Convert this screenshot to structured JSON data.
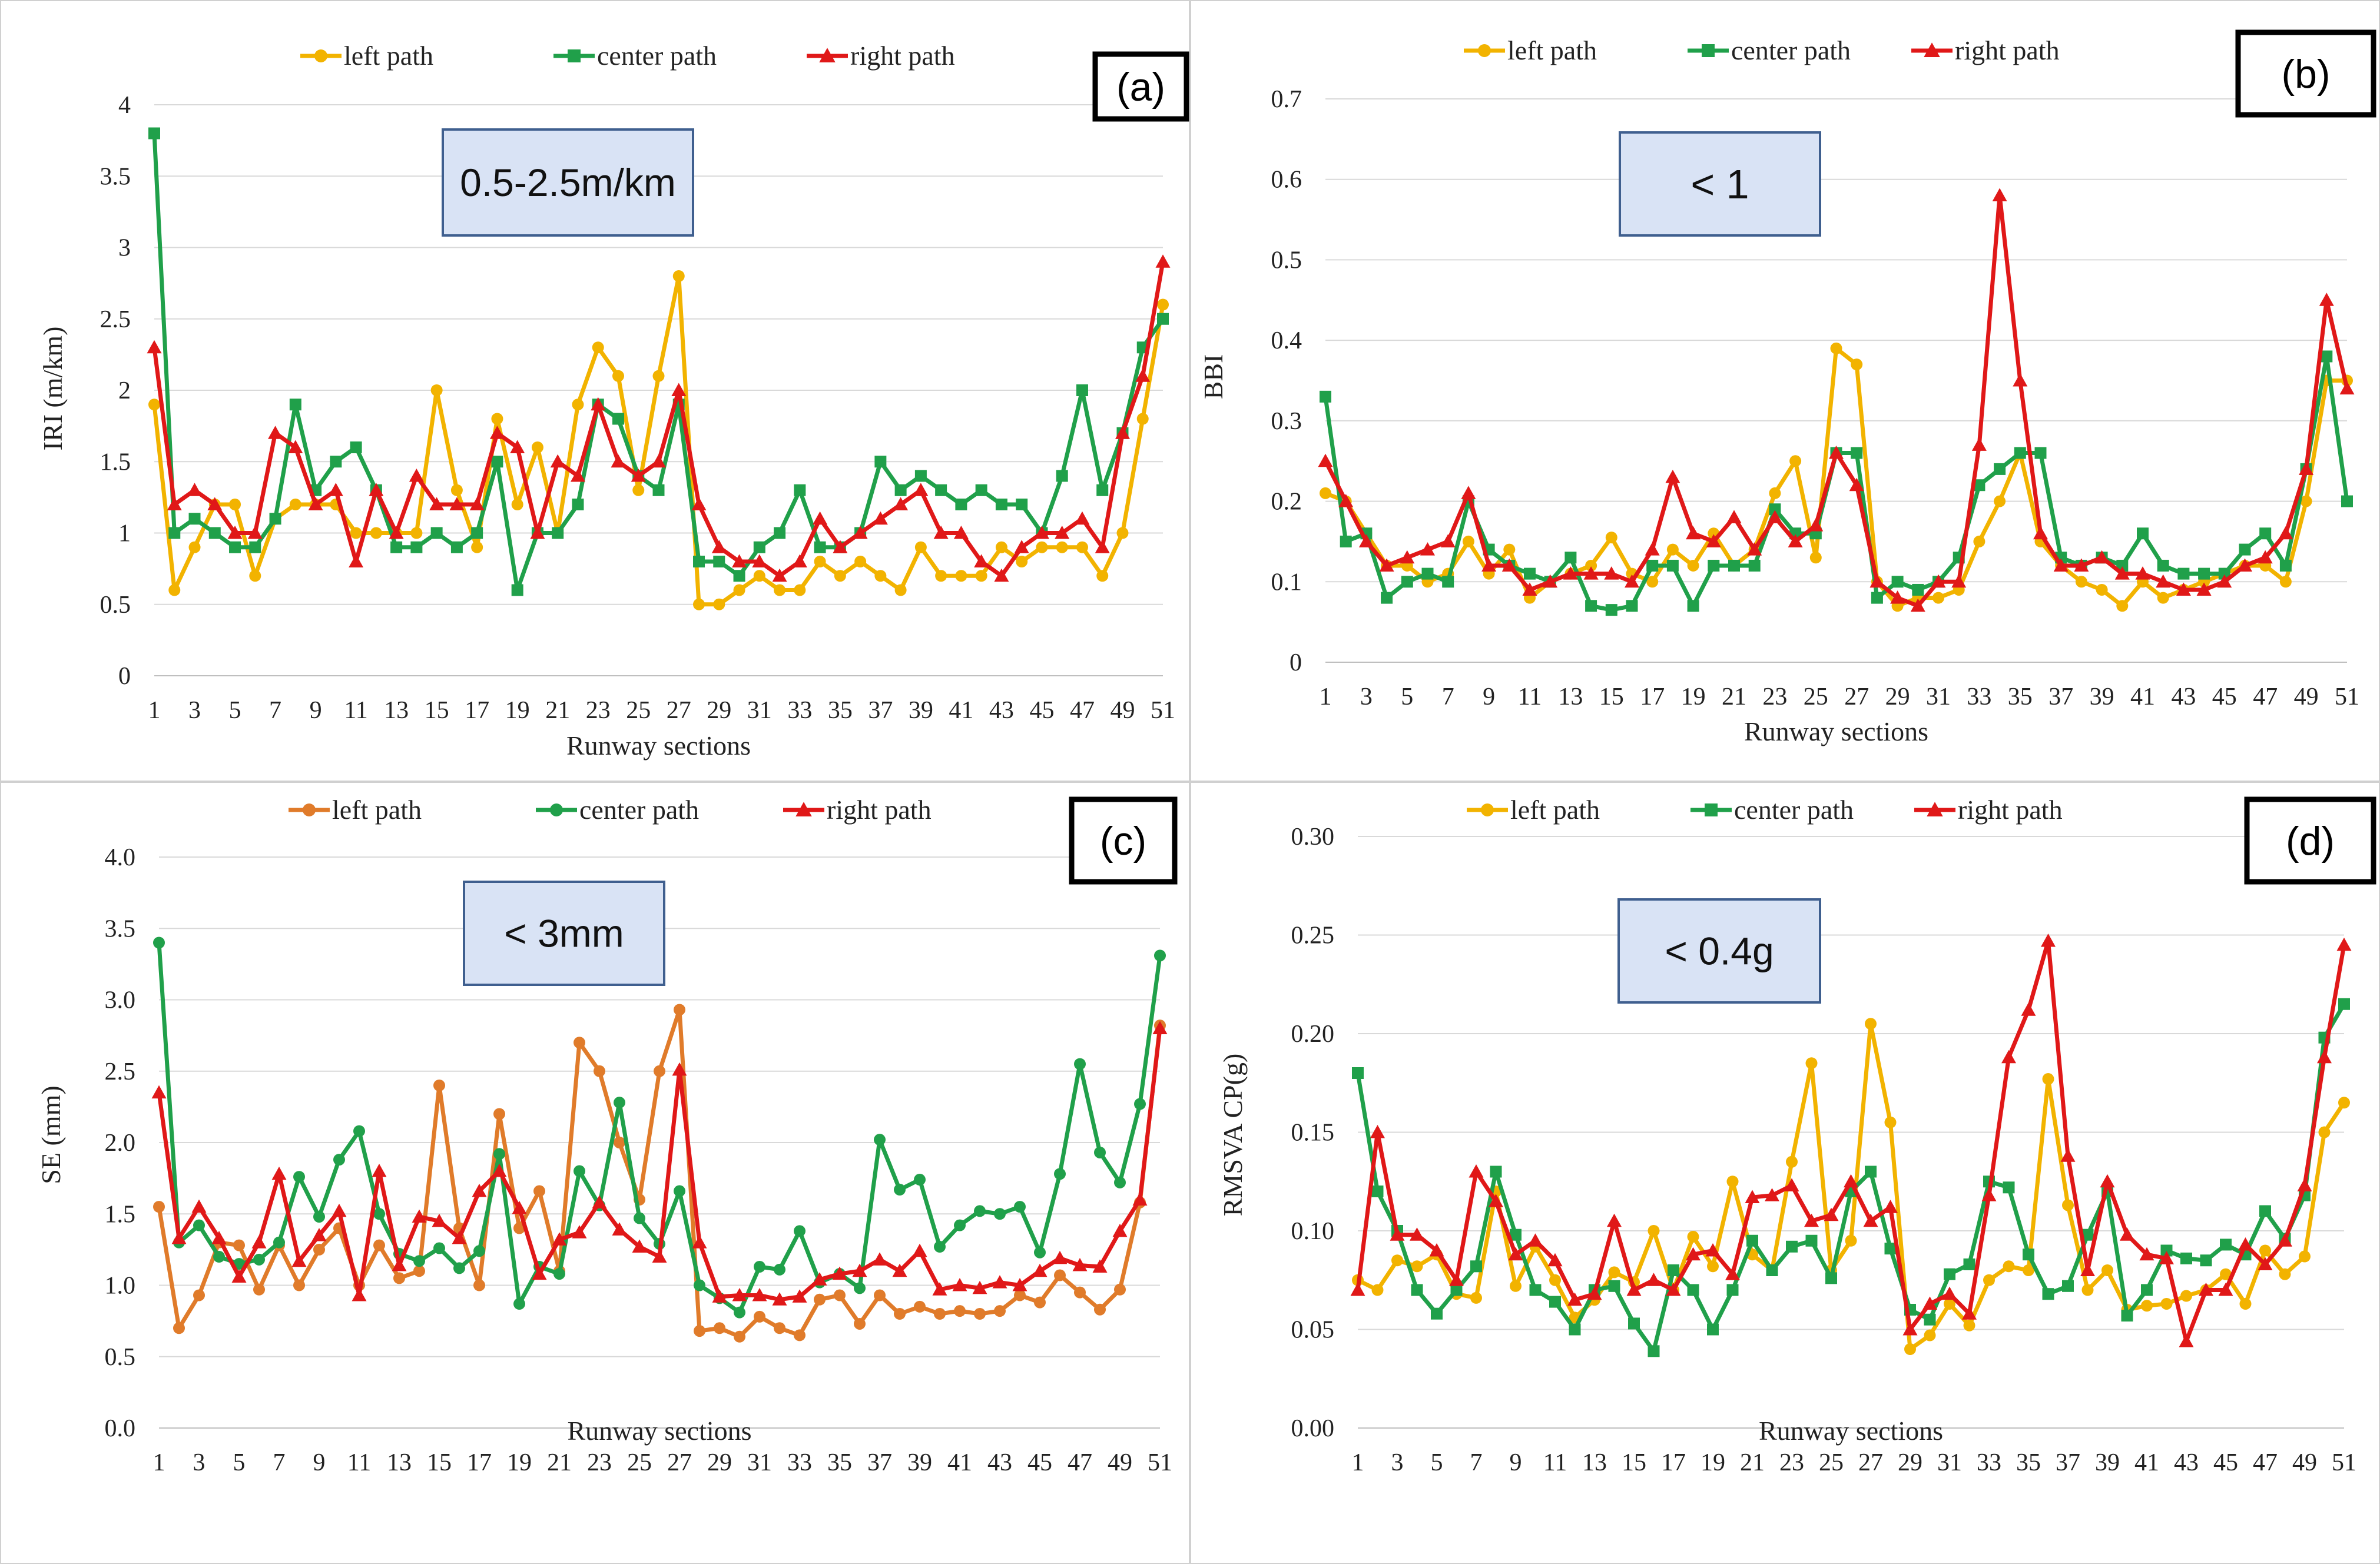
{
  "colors": {
    "left_a": "#F2B300",
    "left_c": "#E07B2A",
    "center": "#20A04A",
    "right": "#E01818",
    "grid": "#D9D9D9",
    "annot_bg": "#D9E3F5",
    "annot_border": "#3F5F8F"
  },
  "chart_data": [
    {
      "panel_label": "(a)",
      "type": "line",
      "annotation": "0.5-2.5m/km",
      "xlabel": "Runway sections",
      "ylabel": "IRI (m/km)",
      "ylim": [
        0,
        4
      ],
      "yticks": [
        "0",
        "0.5",
        "1",
        "1.5",
        "2",
        "2.5",
        "3",
        "3.5",
        "4"
      ],
      "xticks": [
        "1",
        "3",
        "5",
        "7",
        "9",
        "11",
        "13",
        "15",
        "17",
        "19",
        "21",
        "23",
        "25",
        "27",
        "29",
        "31",
        "33",
        "35",
        "37",
        "39",
        "41",
        "43",
        "45",
        "47",
        "49",
        "51"
      ],
      "legend_position": "top",
      "x": [
        1,
        2,
        3,
        4,
        5,
        6,
        7,
        8,
        9,
        10,
        11,
        12,
        13,
        14,
        15,
        16,
        17,
        18,
        19,
        20,
        21,
        22,
        23,
        24,
        25,
        26,
        27,
        28,
        29,
        30,
        31,
        32,
        33,
        34,
        35,
        36,
        37,
        38,
        39,
        40,
        41,
        42,
        43,
        44,
        45,
        46,
        47,
        48,
        49,
        50,
        51
      ],
      "series": [
        {
          "name": "left path",
          "marker": "circle",
          "color_key": "left_a",
          "values": [
            1.9,
            0.6,
            0.9,
            1.2,
            1.2,
            0.7,
            1.1,
            1.2,
            1.2,
            1.2,
            1.0,
            1.0,
            1.0,
            1.0,
            2.0,
            1.3,
            0.9,
            1.8,
            1.2,
            1.6,
            1.0,
            1.9,
            2.3,
            2.1,
            1.3,
            2.1,
            2.8,
            0.5,
            0.5,
            0.6,
            0.7,
            0.6,
            0.6,
            0.8,
            0.7,
            0.8,
            0.7,
            0.6,
            0.9,
            0.7,
            0.7,
            0.7,
            0.9,
            0.8,
            0.9,
            0.9,
            0.9,
            0.7,
            1.0,
            1.8,
            2.6
          ]
        },
        {
          "name": "center path",
          "marker": "square",
          "color_key": "center",
          "values": [
            3.8,
            1.0,
            1.1,
            1.0,
            0.9,
            0.9,
            1.1,
            1.9,
            1.3,
            1.5,
            1.6,
            1.3,
            0.9,
            0.9,
            1.0,
            0.9,
            1.0,
            1.5,
            0.6,
            1.0,
            1.0,
            1.2,
            1.9,
            1.8,
            1.4,
            1.3,
            1.9,
            0.8,
            0.8,
            0.7,
            0.9,
            1.0,
            1.3,
            0.9,
            0.9,
            1.0,
            1.5,
            1.3,
            1.4,
            1.3,
            1.2,
            1.3,
            1.2,
            1.2,
            1.0,
            1.4,
            2.0,
            1.3,
            1.7,
            2.3,
            2.5
          ]
        },
        {
          "name": "right path",
          "marker": "triangle",
          "color_key": "right",
          "values": [
            2.3,
            1.2,
            1.3,
            1.2,
            1.0,
            1.0,
            1.7,
            1.6,
            1.2,
            1.3,
            0.8,
            1.3,
            1.0,
            1.4,
            1.2,
            1.2,
            1.2,
            1.7,
            1.6,
            1.0,
            1.5,
            1.4,
            1.9,
            1.5,
            1.4,
            1.5,
            2.0,
            1.2,
            0.9,
            0.8,
            0.8,
            0.7,
            0.8,
            1.1,
            0.9,
            1.0,
            1.1,
            1.2,
            1.3,
            1.0,
            1.0,
            0.8,
            0.7,
            0.9,
            1.0,
            1.0,
            1.1,
            0.9,
            1.7,
            2.1,
            2.9
          ]
        }
      ]
    },
    {
      "panel_label": "(b)",
      "type": "line",
      "annotation": "< 1",
      "xlabel": "Runway sections",
      "ylabel": "BBI",
      "ylim": [
        0,
        0.7
      ],
      "yticks": [
        "0",
        "0.1",
        "0.2",
        "0.3",
        "0.4",
        "0.5",
        "0.6",
        "0.7"
      ],
      "xticks": [
        "1",
        "3",
        "5",
        "7",
        "9",
        "11",
        "13",
        "15",
        "17",
        "19",
        "21",
        "23",
        "25",
        "27",
        "29",
        "31",
        "33",
        "35",
        "37",
        "39",
        "41",
        "43",
        "45",
        "47",
        "49",
        "51"
      ],
      "legend_position": "top",
      "x": [
        1,
        2,
        3,
        4,
        5,
        6,
        7,
        8,
        9,
        10,
        11,
        12,
        13,
        14,
        15,
        16,
        17,
        18,
        19,
        20,
        21,
        22,
        23,
        24,
        25,
        26,
        27,
        28,
        29,
        30,
        31,
        32,
        33,
        34,
        35,
        36,
        37,
        38,
        39,
        40,
        41,
        42,
        43,
        44,
        45,
        46,
        47,
        48,
        49,
        50,
        51
      ],
      "series": [
        {
          "name": "left path",
          "marker": "circle",
          "color_key": "left_a",
          "values": [
            0.21,
            0.2,
            0.16,
            0.12,
            0.12,
            0.1,
            0.11,
            0.15,
            0.11,
            0.14,
            0.08,
            0.1,
            0.11,
            0.12,
            0.155,
            0.11,
            0.1,
            0.14,
            0.12,
            0.16,
            0.12,
            0.14,
            0.21,
            0.25,
            0.13,
            0.39,
            0.37,
            0.1,
            0.07,
            0.08,
            0.08,
            0.09,
            0.15,
            0.2,
            0.26,
            0.15,
            0.12,
            0.1,
            0.09,
            0.07,
            0.1,
            0.08,
            0.09,
            0.1,
            0.11,
            0.12,
            0.12,
            0.1,
            0.2,
            0.35,
            0.35
          ]
        },
        {
          "name": "center path",
          "marker": "square",
          "color_key": "center",
          "values": [
            0.33,
            0.15,
            0.16,
            0.08,
            0.1,
            0.11,
            0.1,
            0.2,
            0.14,
            0.12,
            0.11,
            0.1,
            0.13,
            0.07,
            0.065,
            0.07,
            0.12,
            0.12,
            0.07,
            0.12,
            0.12,
            0.12,
            0.19,
            0.16,
            0.16,
            0.26,
            0.26,
            0.08,
            0.1,
            0.09,
            0.1,
            0.13,
            0.22,
            0.24,
            0.26,
            0.26,
            0.13,
            0.12,
            0.13,
            0.12,
            0.16,
            0.12,
            0.11,
            0.11,
            0.11,
            0.14,
            0.16,
            0.12,
            0.24,
            0.38,
            0.2
          ]
        },
        {
          "name": "right path",
          "marker": "triangle",
          "color_key": "right",
          "values": [
            0.25,
            0.2,
            0.15,
            0.12,
            0.13,
            0.14,
            0.15,
            0.21,
            0.12,
            0.12,
            0.09,
            0.1,
            0.11,
            0.11,
            0.11,
            0.1,
            0.14,
            0.23,
            0.16,
            0.15,
            0.18,
            0.14,
            0.18,
            0.15,
            0.17,
            0.26,
            0.22,
            0.1,
            0.08,
            0.07,
            0.1,
            0.1,
            0.27,
            0.58,
            0.35,
            0.16,
            0.12,
            0.12,
            0.13,
            0.11,
            0.11,
            0.1,
            0.09,
            0.09,
            0.1,
            0.12,
            0.13,
            0.16,
            0.24,
            0.45,
            0.34
          ]
        }
      ]
    },
    {
      "panel_label": "(c)",
      "type": "line",
      "annotation": "< 3mm",
      "xlabel": "Runway sections",
      "ylabel": "SE (mm)",
      "ylim": [
        0,
        4
      ],
      "yticks": [
        "0.0",
        "0.5",
        "1.0",
        "1.5",
        "2.0",
        "2.5",
        "3.0",
        "3.5",
        "4.0"
      ],
      "xticks": [
        "1",
        "3",
        "5",
        "7",
        "9",
        "11",
        "13",
        "15",
        "17",
        "19",
        "21",
        "23",
        "25",
        "27",
        "29",
        "31",
        "33",
        "35",
        "37",
        "39",
        "41",
        "43",
        "45",
        "47",
        "49",
        "51"
      ],
      "legend_position": "top",
      "x": [
        1,
        2,
        3,
        4,
        5,
        6,
        7,
        8,
        9,
        10,
        11,
        12,
        13,
        14,
        15,
        16,
        17,
        18,
        19,
        20,
        21,
        22,
        23,
        24,
        25,
        26,
        27,
        28,
        29,
        30,
        31,
        32,
        33,
        34,
        35,
        36,
        37,
        38,
        39,
        40,
        41,
        42,
        43,
        44,
        45,
        46,
        47,
        48,
        49,
        50,
        51
      ],
      "series": [
        {
          "name": "left path",
          "marker": "circle",
          "color_key": "left_c",
          "values": [
            1.55,
            0.7,
            0.93,
            1.3,
            1.28,
            0.97,
            1.28,
            1.0,
            1.25,
            1.4,
            1.0,
            1.28,
            1.05,
            1.1,
            2.4,
            1.4,
            1.0,
            2.2,
            1.4,
            1.66,
            1.1,
            2.7,
            2.5,
            2.0,
            1.6,
            2.5,
            2.93,
            0.68,
            0.7,
            0.64,
            0.78,
            0.7,
            0.65,
            0.9,
            0.93,
            0.73,
            0.93,
            0.8,
            0.85,
            0.8,
            0.82,
            0.8,
            0.82,
            0.93,
            0.88,
            1.07,
            0.95,
            0.83,
            0.97,
            1.58,
            2.82
          ]
        },
        {
          "name": "center path",
          "marker": "circle",
          "color_key": "center",
          "values": [
            3.4,
            1.3,
            1.42,
            1.2,
            1.15,
            1.18,
            1.3,
            1.76,
            1.48,
            1.88,
            2.08,
            1.5,
            1.22,
            1.17,
            1.26,
            1.12,
            1.24,
            1.92,
            0.87,
            1.13,
            1.08,
            1.8,
            1.56,
            2.28,
            1.47,
            1.29,
            1.66,
            1.0,
            0.91,
            0.81,
            1.13,
            1.11,
            1.38,
            1.02,
            1.08,
            0.98,
            2.02,
            1.67,
            1.74,
            1.27,
            1.42,
            1.52,
            1.5,
            1.55,
            1.23,
            1.78,
            2.55,
            1.93,
            1.72,
            2.27,
            3.31
          ]
        },
        {
          "name": "right path",
          "marker": "triangle",
          "color_key": "right",
          "values": [
            2.35,
            1.33,
            1.55,
            1.33,
            1.06,
            1.3,
            1.78,
            1.17,
            1.35,
            1.52,
            0.93,
            1.8,
            1.14,
            1.48,
            1.45,
            1.33,
            1.66,
            1.8,
            1.54,
            1.08,
            1.32,
            1.37,
            1.58,
            1.39,
            1.27,
            1.2,
            2.51,
            1.3,
            0.92,
            0.93,
            0.93,
            0.9,
            0.92,
            1.04,
            1.08,
            1.1,
            1.18,
            1.1,
            1.24,
            0.97,
            1.0,
            0.98,
            1.02,
            1.0,
            1.1,
            1.19,
            1.14,
            1.13,
            1.38,
            1.6,
            2.8
          ]
        }
      ]
    },
    {
      "panel_label": "(d)",
      "type": "line",
      "annotation": "< 0.4g",
      "xlabel": "Runway sections",
      "ylabel": "RMSVA CP(g)",
      "ylim": [
        0,
        0.3
      ],
      "yticks": [
        "0.00",
        "0.05",
        "0.10",
        "0.15",
        "0.20",
        "0.25",
        "0.30"
      ],
      "xticks": [
        "1",
        "3",
        "5",
        "7",
        "9",
        "11",
        "13",
        "15",
        "17",
        "19",
        "21",
        "23",
        "25",
        "27",
        "29",
        "31",
        "33",
        "35",
        "37",
        "39",
        "41",
        "43",
        "45",
        "47",
        "49",
        "51"
      ],
      "legend_position": "top",
      "x": [
        1,
        2,
        3,
        4,
        5,
        6,
        7,
        8,
        9,
        10,
        11,
        12,
        13,
        14,
        15,
        16,
        17,
        18,
        19,
        20,
        21,
        22,
        23,
        24,
        25,
        26,
        27,
        28,
        29,
        30,
        31,
        32,
        33,
        34,
        35,
        36,
        37,
        38,
        39,
        40,
        41,
        42,
        43,
        44,
        45,
        46,
        47,
        48,
        49,
        50,
        51
      ],
      "series": [
        {
          "name": "left path",
          "marker": "circle",
          "color_key": "left_a",
          "values": [
            0.075,
            0.07,
            0.085,
            0.082,
            0.088,
            0.068,
            0.066,
            0.12,
            0.072,
            0.092,
            0.075,
            0.056,
            0.065,
            0.079,
            0.074,
            0.1,
            0.07,
            0.097,
            0.082,
            0.125,
            0.088,
            0.08,
            0.135,
            0.185,
            0.08,
            0.095,
            0.205,
            0.155,
            0.04,
            0.047,
            0.063,
            0.052,
            0.075,
            0.082,
            0.08,
            0.177,
            0.113,
            0.07,
            0.08,
            0.06,
            0.062,
            0.063,
            0.067,
            0.07,
            0.078,
            0.063,
            0.09,
            0.078,
            0.087,
            0.15,
            0.165
          ]
        },
        {
          "name": "center path",
          "marker": "square",
          "color_key": "center",
          "values": [
            0.18,
            0.12,
            0.1,
            0.07,
            0.058,
            0.07,
            0.082,
            0.13,
            0.098,
            0.07,
            0.064,
            0.05,
            0.07,
            0.072,
            0.053,
            0.039,
            0.08,
            0.07,
            0.05,
            0.07,
            0.095,
            0.08,
            0.092,
            0.095,
            0.076,
            0.12,
            0.13,
            0.091,
            0.06,
            0.055,
            0.078,
            0.083,
            0.125,
            0.122,
            0.088,
            0.068,
            0.072,
            0.098,
            0.12,
            0.057,
            0.07,
            0.09,
            0.086,
            0.085,
            0.093,
            0.088,
            0.11,
            0.096,
            0.118,
            0.198,
            0.215
          ]
        },
        {
          "name": "right path",
          "marker": "triangle",
          "color_key": "right",
          "values": [
            0.07,
            0.15,
            0.098,
            0.098,
            0.09,
            0.075,
            0.13,
            0.115,
            0.088,
            0.095,
            0.085,
            0.065,
            0.068,
            0.105,
            0.07,
            0.075,
            0.07,
            0.088,
            0.09,
            0.078,
            0.117,
            0.118,
            0.123,
            0.105,
            0.108,
            0.125,
            0.105,
            0.112,
            0.05,
            0.063,
            0.068,
            0.058,
            0.118,
            0.188,
            0.212,
            0.247,
            0.138,
            0.08,
            0.125,
            0.098,
            0.088,
            0.086,
            0.044,
            0.07,
            0.07,
            0.093,
            0.083,
            0.095,
            0.123,
            0.188,
            0.245
          ]
        }
      ]
    }
  ]
}
